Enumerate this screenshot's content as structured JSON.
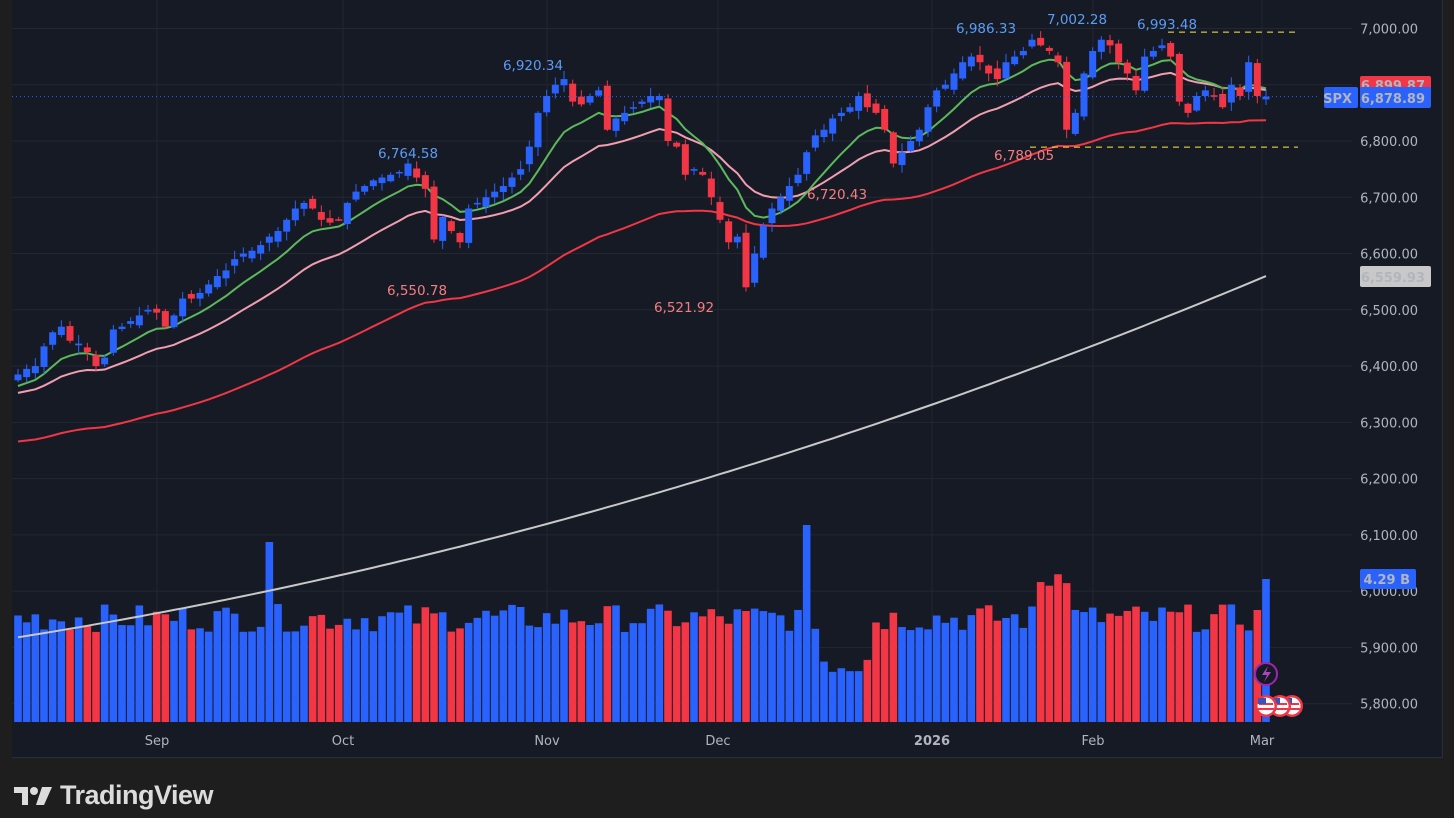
{
  "symbol": "SPX",
  "branding": {
    "name": "TradingView"
  },
  "colors": {
    "background": "#161a25",
    "grid": "#232733",
    "up": "#2962ff",
    "down": "#f23645",
    "ema_fast": "#5cb85c",
    "ema_mid": "#f19eb1",
    "ema_slow": "#f23645",
    "sma_long": "#c8c8c8",
    "range_line": "#ffeb3b",
    "last_price_line": "#2962ff"
  },
  "price_axis": {
    "labels": [
      "7,000.00",
      "6,900.00",
      "6,800.00",
      "6,700.00",
      "6,600.00",
      "6,500.00",
      "6,400.00",
      "6,300.00",
      "6,200.00",
      "6,100.00",
      "6,000.00",
      "5,900.00",
      "5,800.00"
    ],
    "values": [
      7000,
      6900,
      6800,
      6700,
      6600,
      6500,
      6400,
      6300,
      6200,
      6100,
      6000,
      5900,
      5800
    ]
  },
  "badges": {
    "symbol_tag": "SPX",
    "last_price": "6,878.89",
    "ema_price": "6,899.87",
    "sma_price": "6,559.93",
    "volume": "4.29 B"
  },
  "time_axis": {
    "labels": [
      "Sep",
      "Oct",
      "Nov",
      "Dec",
      "2026",
      "Feb",
      "Mar"
    ],
    "bold": [
      false,
      false,
      false,
      false,
      true,
      false,
      false
    ]
  },
  "annotations": [
    {
      "text": "6,764.58",
      "type": "high"
    },
    {
      "text": "6,920.34",
      "type": "high"
    },
    {
      "text": "6,986.33",
      "type": "high"
    },
    {
      "text": "7,002.28",
      "type": "high"
    },
    {
      "text": "6,993.48",
      "type": "high"
    },
    {
      "text": "6,550.78",
      "type": "low"
    },
    {
      "text": "6,521.92",
      "type": "low"
    },
    {
      "text": "6,720.43",
      "type": "low"
    },
    {
      "text": "6,789.05",
      "type": "low"
    }
  ],
  "chart_data": {
    "type": "candlestick",
    "title": "SPX",
    "xlabel": "",
    "ylabel": "",
    "ylim": [
      5770,
      7050
    ],
    "grid": true,
    "x_tick_labels": [
      "Sep",
      "Oct",
      "Nov",
      "Dec",
      "2026",
      "Feb",
      "Mar"
    ],
    "y_tick_labels": [
      "5,800.00",
      "5,900.00",
      "6,000.00",
      "6,100.00",
      "6,200.00",
      "6,300.00",
      "6,400.00",
      "6,500.00",
      "6,600.00",
      "6,700.00",
      "6,800.00",
      "6,900.00",
      "7,000.00"
    ],
    "last_price": 6878.89,
    "marked_highs": [
      6764.58,
      6920.34,
      6986.33,
      7002.28,
      6993.48
    ],
    "marked_lows": [
      6550.78,
      6521.92,
      6720.43,
      6789.05
    ],
    "range_lines": [
      6993.48,
      6789.05
    ],
    "indicators": {
      "ema_slow_last": 6899.87,
      "sma_long_last": 6559.93,
      "volume_last": "4.29 B"
    },
    "close_path": [
      6385,
      6395,
      6400,
      6435,
      6460,
      6470,
      6445,
      6440,
      6425,
      6400,
      6415,
      6465,
      6470,
      6480,
      6490,
      6500,
      6495,
      6470,
      6490,
      6520,
      6520,
      6530,
      6545,
      6560,
      6570,
      6590,
      6600,
      6605,
      6615,
      6630,
      6640,
      6660,
      6680,
      6690,
      6680,
      6660,
      6655,
      6660,
      6690,
      6710,
      6720,
      6730,
      6735,
      6740,
      6745,
      6760,
      6735,
      6715,
      6625,
      6665,
      6640,
      6620,
      6680,
      6690,
      6700,
      6710,
      6720,
      6735,
      6750,
      6790,
      6850,
      6880,
      6900,
      6910,
      6870,
      6865,
      6880,
      6890,
      6820,
      6840,
      6850,
      6860,
      6870,
      6880,
      6880,
      6800,
      6790,
      6740,
      6750,
      6740,
      6700,
      6660,
      6620,
      6630,
      6540,
      6600,
      6650,
      6680,
      6700,
      6720,
      6740,
      6780,
      6810,
      6820,
      6840,
      6850,
      6860,
      6880,
      6860,
      6850,
      6820,
      6760,
      6780,
      6800,
      6820,
      6860,
      6890,
      6900,
      6920,
      6940,
      6950,
      6940,
      6920,
      6910,
      6940,
      6950,
      6960,
      6980,
      6970,
      6960,
      6940,
      6820,
      6850,
      6920,
      6960,
      6980,
      6970,
      6940,
      6920,
      6890,
      6950,
      6960,
      6970,
      6950,
      6870,
      6850,
      6880,
      6890,
      6880,
      6860,
      6900,
      6880,
      6940,
      6880,
      6878.89
    ]
  }
}
